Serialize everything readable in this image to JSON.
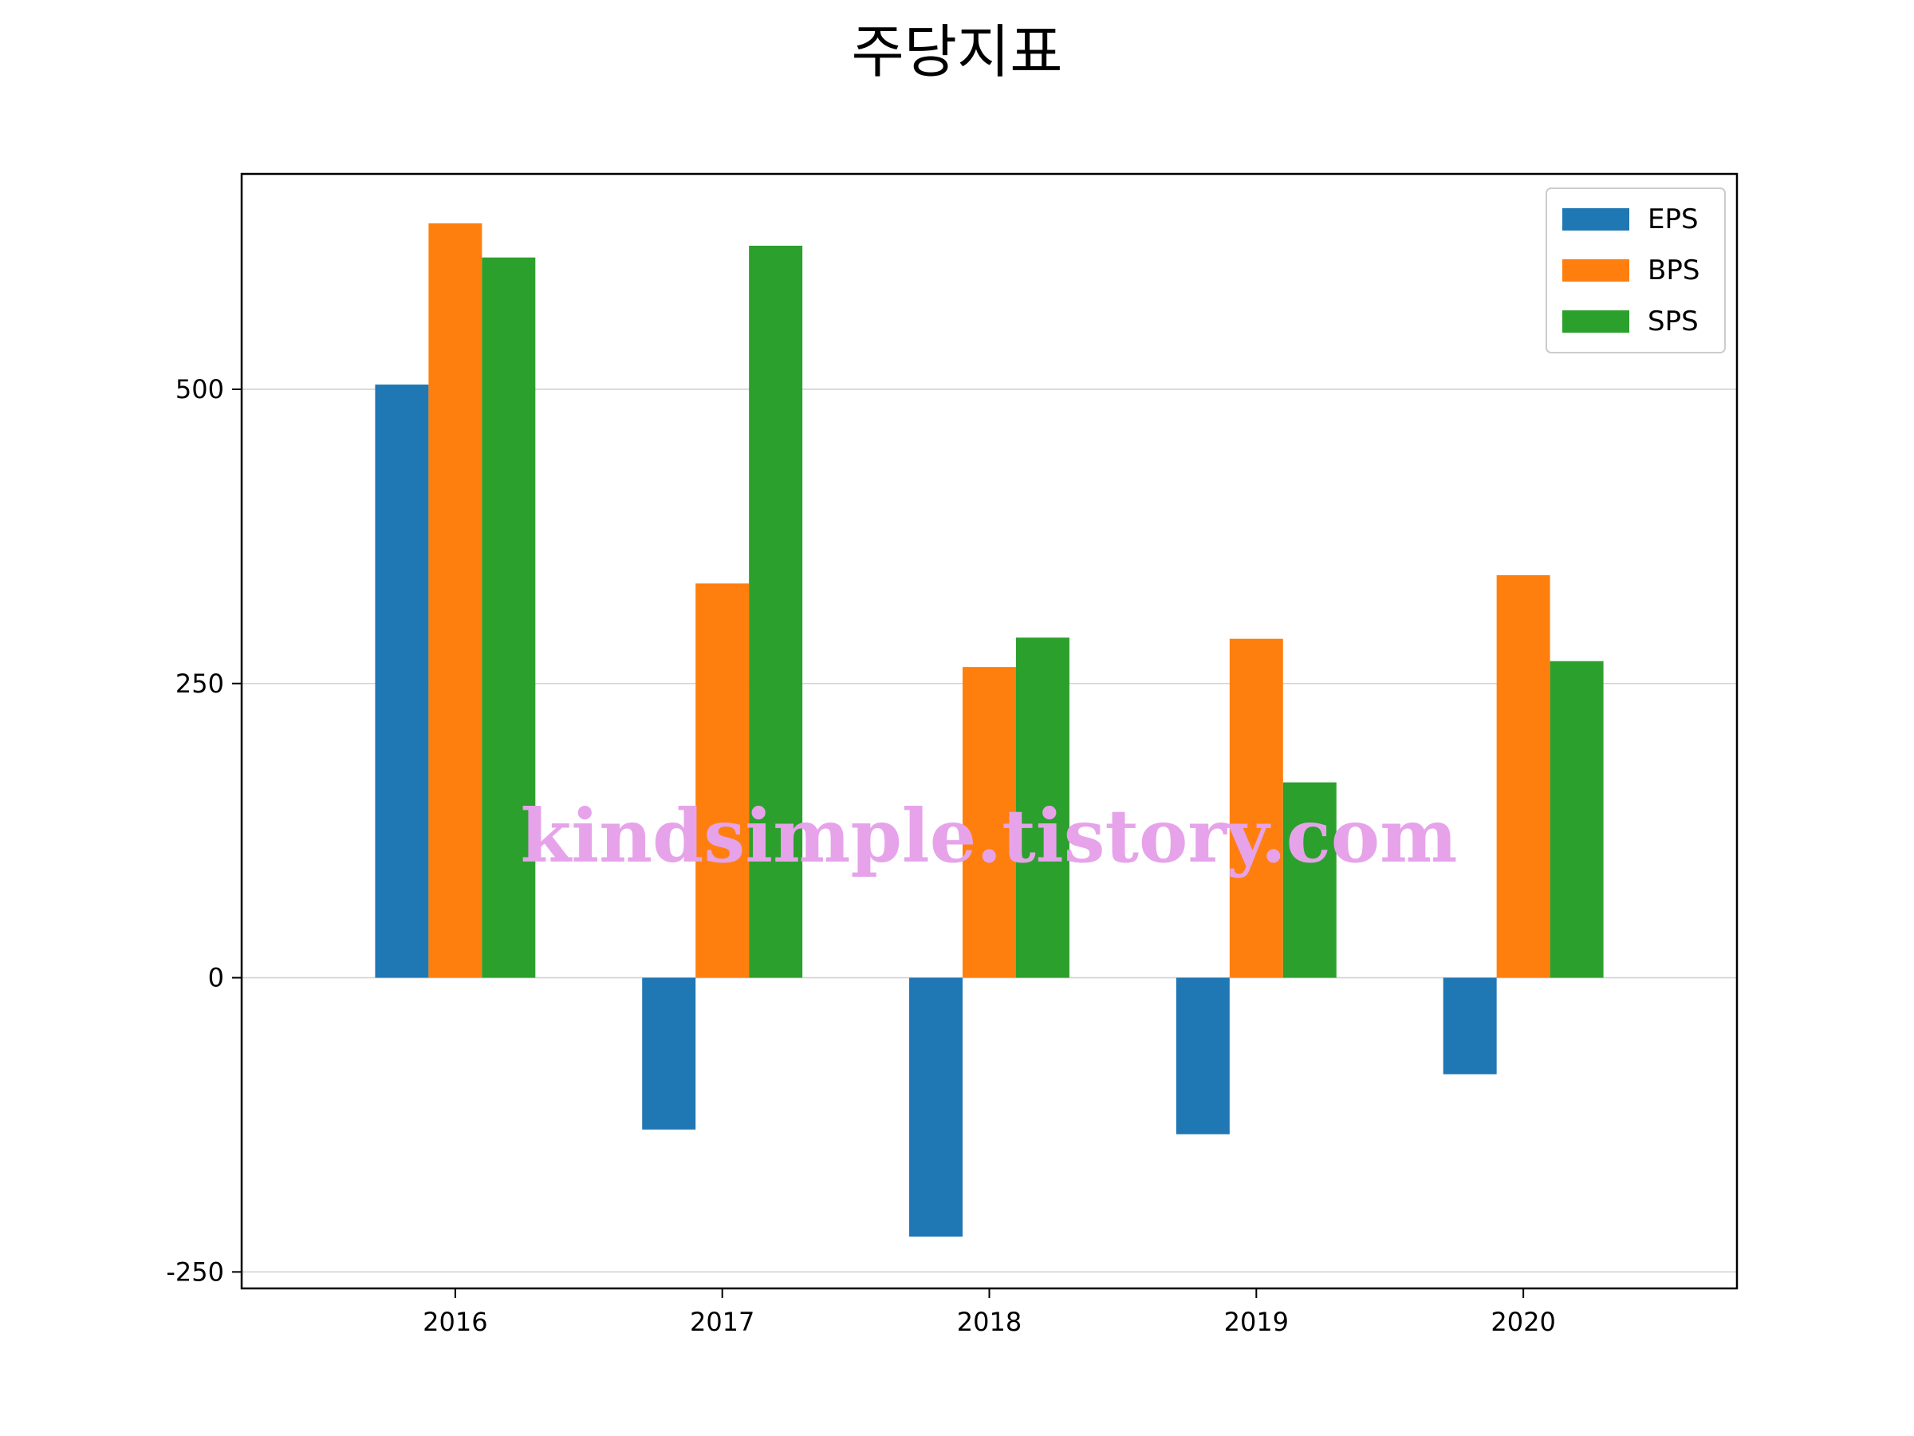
{
  "chart_data": {
    "type": "bar",
    "title": "주당지표",
    "xlabel": "",
    "ylabel": "",
    "categories": [
      "2016",
      "2017",
      "2018",
      "2019",
      "2020"
    ],
    "series": [
      {
        "name": "EPS",
        "color": "#1f77b4",
        "values": [
          504,
          -129,
          -220,
          -133,
          -82
        ]
      },
      {
        "name": "BPS",
        "color": "#ff7f0e",
        "values": [
          641,
          335,
          264,
          288,
          342
        ]
      },
      {
        "name": "SPS",
        "color": "#2ca02c",
        "values": [
          612,
          622,
          289,
          166,
          269
        ]
      }
    ],
    "ylim": [
      -264,
      683
    ],
    "yticks": [
      -250,
      0,
      250,
      500
    ],
    "ytick_labels": [
      "-250",
      "0",
      "250",
      "500"
    ],
    "grid": "y",
    "legend_position": "top-right"
  },
  "watermark": "kindsimple.tistory.com"
}
